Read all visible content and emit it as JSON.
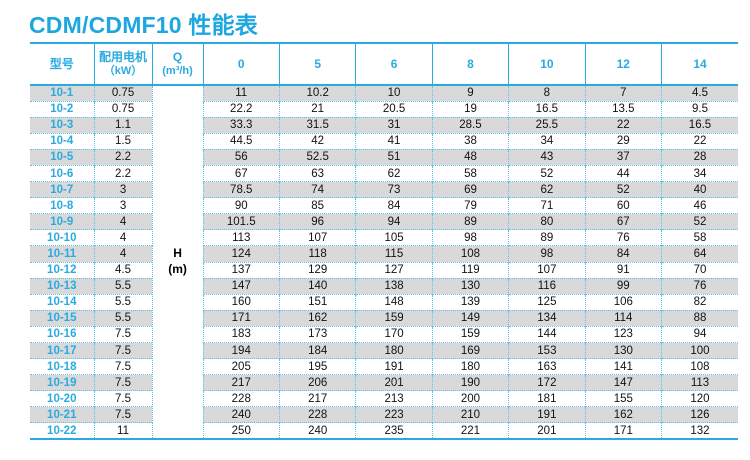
{
  "page": {
    "title": "CDM/CDMF10 性能表"
  },
  "colors": {
    "accent_cyan": "#29abe2",
    "dotted_border": "#5cc3ea",
    "stripe_grey": "#d9d9d9",
    "title_blue": "#1da7e0"
  },
  "table": {
    "header": {
      "model": "型号",
      "motor_line1": "配用电机",
      "motor_line2": "（kW）",
      "q_line1": "Q",
      "q_line2": "(m³/h)",
      "flow_columns": [
        "0",
        "5",
        "6",
        "8",
        "10",
        "12",
        "14"
      ]
    },
    "h_label_line1": "H",
    "h_label_line2": "(m)",
    "rows": [
      {
        "model": "10-1",
        "kw": "0.75",
        "values": [
          "11",
          "10.2",
          "10",
          "9",
          "8",
          "7",
          "4.5"
        ]
      },
      {
        "model": "10-2",
        "kw": "0.75",
        "values": [
          "22.2",
          "21",
          "20.5",
          "19",
          "16.5",
          "13.5",
          "9.5"
        ]
      },
      {
        "model": "10-3",
        "kw": "1.1",
        "values": [
          "33.3",
          "31.5",
          "31",
          "28.5",
          "25.5",
          "22",
          "16.5"
        ]
      },
      {
        "model": "10-4",
        "kw": "1.5",
        "values": [
          "44.5",
          "42",
          "41",
          "38",
          "34",
          "29",
          "22"
        ]
      },
      {
        "model": "10-5",
        "kw": "2.2",
        "values": [
          "56",
          "52.5",
          "51",
          "48",
          "43",
          "37",
          "28"
        ]
      },
      {
        "model": "10-6",
        "kw": "2.2",
        "values": [
          "67",
          "63",
          "62",
          "58",
          "52",
          "44",
          "34"
        ]
      },
      {
        "model": "10-7",
        "kw": "3",
        "values": [
          "78.5",
          "74",
          "73",
          "69",
          "62",
          "52",
          "40"
        ]
      },
      {
        "model": "10-8",
        "kw": "3",
        "values": [
          "90",
          "85",
          "84",
          "79",
          "71",
          "60",
          "46"
        ]
      },
      {
        "model": "10-9",
        "kw": "4",
        "values": [
          "101.5",
          "96",
          "94",
          "89",
          "80",
          "67",
          "52"
        ]
      },
      {
        "model": "10-10",
        "kw": "4",
        "values": [
          "113",
          "107",
          "105",
          "98",
          "89",
          "76",
          "58"
        ]
      },
      {
        "model": "10-11",
        "kw": "4",
        "values": [
          "124",
          "118",
          "115",
          "108",
          "98",
          "84",
          "64"
        ]
      },
      {
        "model": "10-12",
        "kw": "4.5",
        "values": [
          "137",
          "129",
          "127",
          "119",
          "107",
          "91",
          "70"
        ]
      },
      {
        "model": "10-13",
        "kw": "5.5",
        "values": [
          "147",
          "140",
          "138",
          "130",
          "116",
          "99",
          "76"
        ]
      },
      {
        "model": "10-14",
        "kw": "5.5",
        "values": [
          "160",
          "151",
          "148",
          "139",
          "125",
          "106",
          "82"
        ]
      },
      {
        "model": "10-15",
        "kw": "5.5",
        "values": [
          "171",
          "162",
          "159",
          "149",
          "134",
          "114",
          "88"
        ]
      },
      {
        "model": "10-16",
        "kw": "7.5",
        "values": [
          "183",
          "173",
          "170",
          "159",
          "144",
          "123",
          "94"
        ]
      },
      {
        "model": "10-17",
        "kw": "7.5",
        "values": [
          "194",
          "184",
          "180",
          "169",
          "153",
          "130",
          "100"
        ]
      },
      {
        "model": "10-18",
        "kw": "7.5",
        "values": [
          "205",
          "195",
          "191",
          "180",
          "163",
          "141",
          "108"
        ]
      },
      {
        "model": "10-19",
        "kw": "7.5",
        "values": [
          "217",
          "206",
          "201",
          "190",
          "172",
          "147",
          "113"
        ]
      },
      {
        "model": "10-20",
        "kw": "7.5",
        "values": [
          "228",
          "217",
          "213",
          "200",
          "181",
          "155",
          "120"
        ]
      },
      {
        "model": "10-21",
        "kw": "7.5",
        "values": [
          "240",
          "228",
          "223",
          "210",
          "191",
          "162",
          "126"
        ]
      },
      {
        "model": "10-22",
        "kw": "11",
        "values": [
          "250",
          "240",
          "235",
          "221",
          "201",
          "171",
          "132"
        ]
      }
    ]
  }
}
